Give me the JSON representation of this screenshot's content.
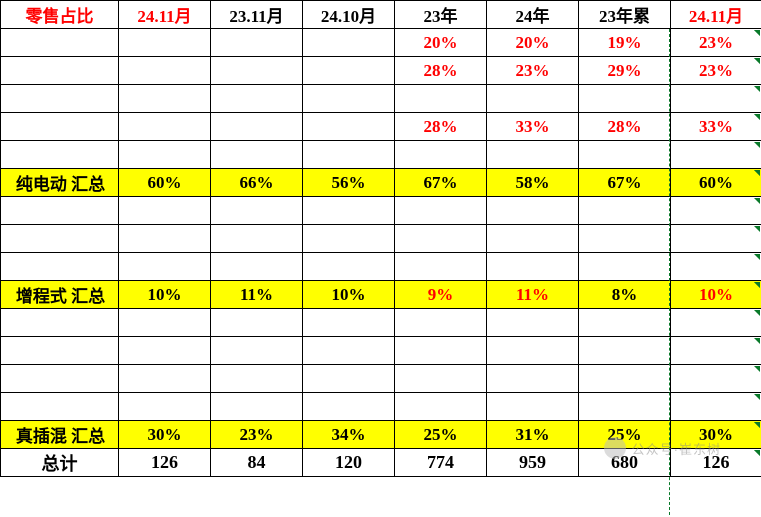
{
  "header": {
    "c0": "零售占比",
    "c1": "24.11月",
    "c2": "23.11月",
    "c3": "24.10月",
    "c4": "23年",
    "c5": "24年",
    "c6": "23年累",
    "c7": "24.11月"
  },
  "rows": {
    "r1": {
      "c4": "20%",
      "c5": "20%",
      "c6": "19%",
      "c7": "23%"
    },
    "r2": {
      "c4": "28%",
      "c5": "23%",
      "c6": "29%",
      "c7": "23%"
    },
    "r3": {},
    "r4": {
      "c4": "28%",
      "c5": "33%",
      "c6": "28%",
      "c7": "33%"
    },
    "r5": {},
    "r6": {
      "label": "纯电动 汇总",
      "c1": "60%",
      "c2": "66%",
      "c3": "56%",
      "c4": "67%",
      "c5": "58%",
      "c6": "67%",
      "c7": "60%"
    },
    "r7": {},
    "r8": {},
    "r9": {},
    "r10": {
      "label": "增程式 汇总",
      "c1": "10%",
      "c2": "11%",
      "c3": "10%",
      "c4": "9%",
      "c5": "11%",
      "c6": "8%",
      "c7": "10%"
    },
    "r11": {},
    "r12": {},
    "r13": {},
    "r14": {},
    "r15": {
      "label": "真插混 汇总",
      "c1": "30%",
      "c2": "23%",
      "c3": "34%",
      "c4": "25%",
      "c5": "31%",
      "c6": "25%",
      "c7": "30%"
    },
    "r16": {
      "label": "总计",
      "c1": "126",
      "c2": "84",
      "c3": "120",
      "c4": "774",
      "c5": "959",
      "c6": "680",
      "c7": "126"
    }
  },
  "watermark": "公众号·崔东树"
}
